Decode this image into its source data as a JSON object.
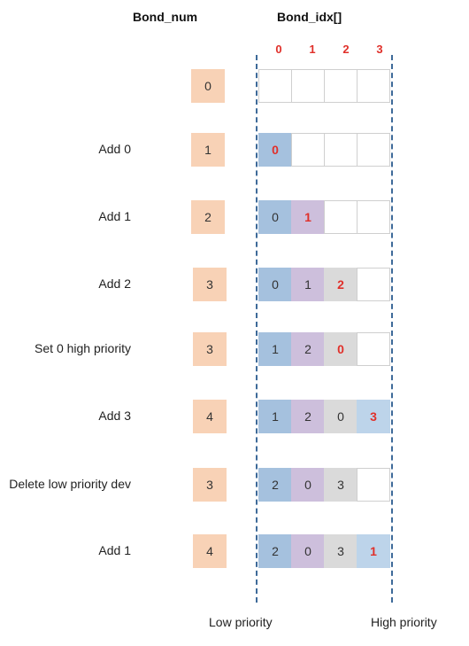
{
  "header": {
    "bond_num_label": "Bond_num",
    "bond_idx_label": "Bond_idx[]"
  },
  "indices": [
    "0",
    "1",
    "2",
    "3"
  ],
  "rows": [
    {
      "op": "",
      "num": "0",
      "cells": [
        null,
        null,
        null,
        null
      ],
      "new_slot": -1
    },
    {
      "op": "Add 0",
      "num": "1",
      "cells": [
        "0",
        null,
        null,
        null
      ],
      "new_slot": 0
    },
    {
      "op": "Add 1",
      "num": "2",
      "cells": [
        "0",
        "1",
        null,
        null
      ],
      "new_slot": 1
    },
    {
      "op": "Add 2",
      "num": "3",
      "cells": [
        "0",
        "1",
        "2",
        null
      ],
      "new_slot": 2
    },
    {
      "op": "Set 0 high priority",
      "num": "3",
      "cells": [
        "1",
        "2",
        "0",
        null
      ],
      "new_slot": 2
    },
    {
      "op": "Add 3",
      "num": "4",
      "cells": [
        "1",
        "2",
        "0",
        "3"
      ],
      "new_slot": 3
    },
    {
      "op": "Delete low priority dev",
      "num": "3",
      "cells": [
        "2",
        "0",
        "3",
        null
      ],
      "new_slot": -1
    },
    {
      "op": "Add 1",
      "num": "4",
      "cells": [
        "2",
        "0",
        "3",
        "1"
      ],
      "new_slot": 3
    }
  ],
  "footer": {
    "low": "Low priority",
    "high": "High priority"
  },
  "colors": {
    "slot0": "#a5c1de",
    "slot1": "#cdbfdc",
    "slot2": "#dadada",
    "slot3": "#bdd4ea",
    "counter": "#f8d2b6",
    "highlight": "#e0302a",
    "dash": "#3e6a99"
  }
}
